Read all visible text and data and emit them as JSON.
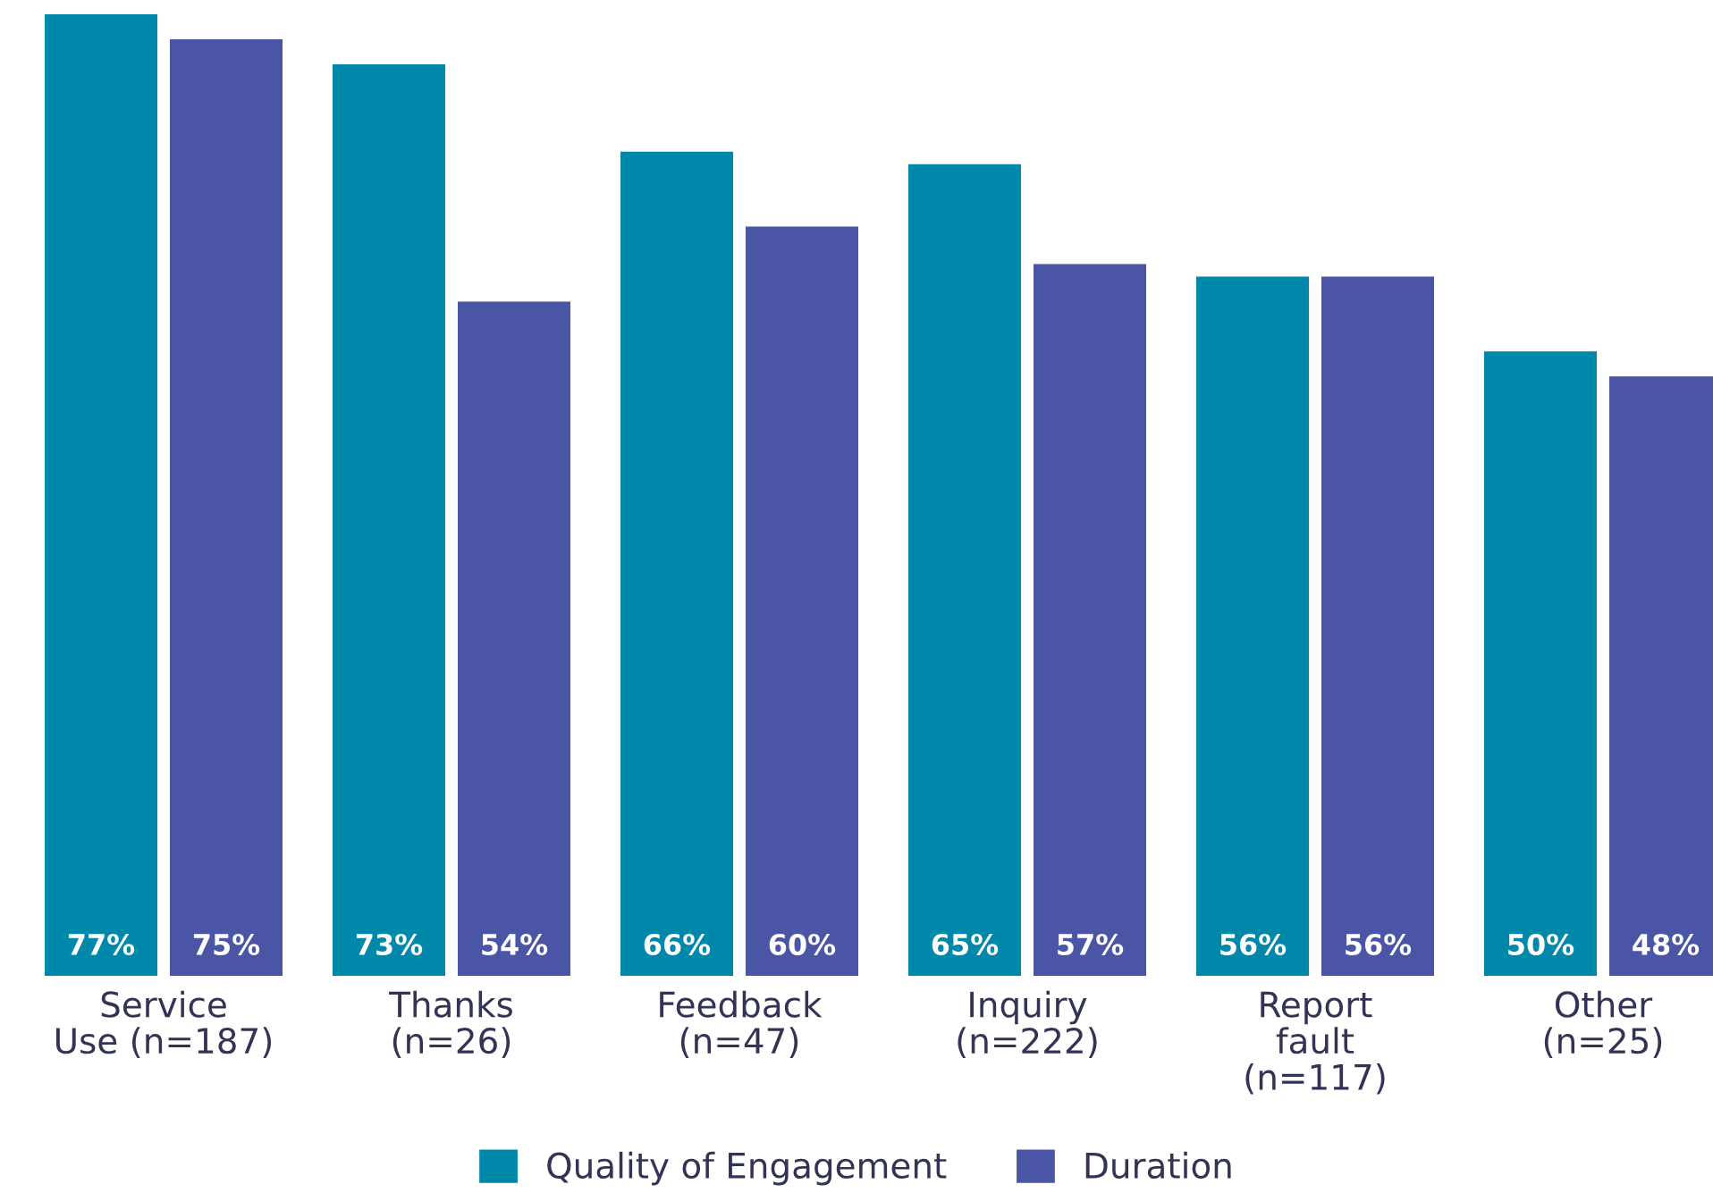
{
  "chart_data": {
    "type": "bar",
    "relative": false,
    "categories": [
      "Service\nUse (n=187)",
      "Thanks\n(n=26)",
      "Feedback\n(n=47)",
      "Inquiry\n(n=222)",
      "Report\nfault\n(n=117)",
      "Other\n(n=25)"
    ],
    "series": [
      {
        "name": "Quality of Engagement",
        "color": "#0088aa",
        "values": [
          77,
          73,
          66,
          65,
          56,
          50
        ],
        "value_labels": [
          "77%",
          "73%",
          "66%",
          "65%",
          "56%",
          "50%"
        ]
      },
      {
        "name": "Duration",
        "color": "#4a55a5",
        "values": [
          75,
          54,
          60,
          57,
          56,
          48
        ],
        "value_labels": [
          "75%",
          "54%",
          "60%",
          "57%",
          "56%",
          "48%"
        ]
      }
    ],
    "legend": "bottom",
    "grid": false
  }
}
